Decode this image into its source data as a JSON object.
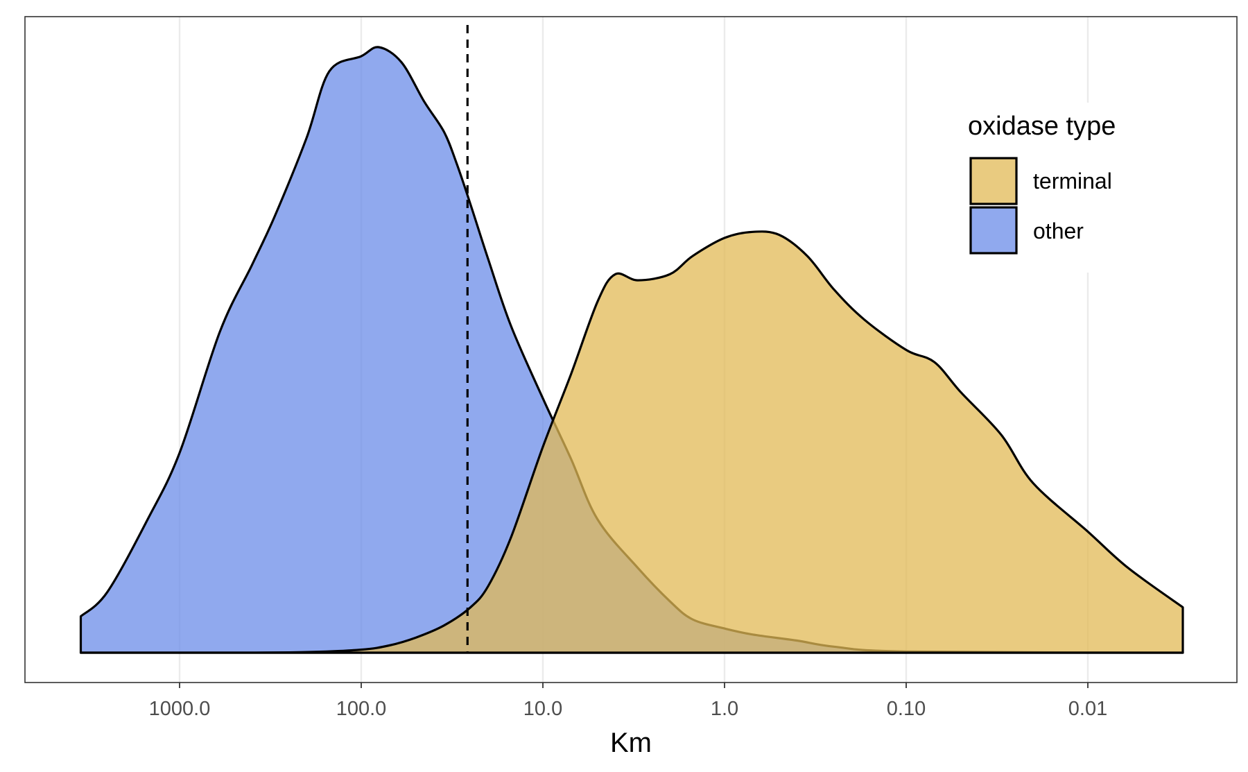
{
  "chart_data": {
    "type": "area",
    "subtype": "density",
    "xlabel": "Km",
    "x_scale": "log10",
    "x_reversed": true,
    "x_ticks": [
      1000,
      100,
      10,
      1,
      0.1,
      0.01
    ],
    "x_tick_labels": [
      "1000.0",
      "100.0",
      "10.0",
      "1.0",
      "0.10",
      "0.01"
    ],
    "xlim": [
      3500,
      0.003
    ],
    "ylim": [
      0,
      1.03
    ],
    "y_axis_shown": false,
    "grid": "vertical major lines",
    "reference_line": {
      "x": 26,
      "style": "dashed"
    },
    "legend": {
      "title": "oxidase type",
      "position": "inside-top-right",
      "entries": [
        {
          "label": "terminal",
          "series": "terminal"
        },
        {
          "label": "other",
          "series": "other"
        }
      ]
    },
    "series": [
      {
        "name": "other",
        "color": "#6b8ce8",
        "opacity": 0.75,
        "points": [
          [
            3500,
            0.06
          ],
          [
            2500,
            0.1
          ],
          [
            1500,
            0.22
          ],
          [
            1000,
            0.33
          ],
          [
            600,
            0.53
          ],
          [
            400,
            0.64
          ],
          [
            300,
            0.72
          ],
          [
            200,
            0.85
          ],
          [
            150,
            0.96
          ],
          [
            100,
            0.985
          ],
          [
            80,
            1.0
          ],
          [
            60,
            0.975
          ],
          [
            45,
            0.91
          ],
          [
            35,
            0.86
          ],
          [
            30,
            0.81
          ],
          [
            25,
            0.74
          ],
          [
            20,
            0.65
          ],
          [
            15,
            0.54
          ],
          [
            10,
            0.42
          ],
          [
            7,
            0.32
          ],
          [
            5,
            0.22
          ],
          [
            3,
            0.14
          ],
          [
            2,
            0.085
          ],
          [
            1.5,
            0.055
          ],
          [
            1,
            0.04
          ],
          [
            0.7,
            0.03
          ],
          [
            0.4,
            0.02
          ],
          [
            0.25,
            0.01
          ],
          [
            0.1,
            0.002
          ],
          [
            0.003,
            0.0
          ]
        ]
      },
      {
        "name": "terminal",
        "color": "#e2b955",
        "opacity": 0.75,
        "points": [
          [
            3500,
            0.0
          ],
          [
            1000,
            0.0
          ],
          [
            500,
            0.0
          ],
          [
            200,
            0.001
          ],
          [
            100,
            0.005
          ],
          [
            70,
            0.012
          ],
          [
            50,
            0.025
          ],
          [
            35,
            0.045
          ],
          [
            25,
            0.075
          ],
          [
            20,
            0.11
          ],
          [
            15,
            0.19
          ],
          [
            10,
            0.34
          ],
          [
            7,
            0.46
          ],
          [
            5,
            0.58
          ],
          [
            4,
            0.625
          ],
          [
            3,
            0.615
          ],
          [
            2,
            0.625
          ],
          [
            1.5,
            0.655
          ],
          [
            1,
            0.685
          ],
          [
            0.7,
            0.695
          ],
          [
            0.5,
            0.69
          ],
          [
            0.35,
            0.655
          ],
          [
            0.25,
            0.6
          ],
          [
            0.17,
            0.55
          ],
          [
            0.1,
            0.5
          ],
          [
            0.07,
            0.48
          ],
          [
            0.05,
            0.43
          ],
          [
            0.03,
            0.36
          ],
          [
            0.02,
            0.28
          ],
          [
            0.01,
            0.2
          ],
          [
            0.006,
            0.14
          ],
          [
            0.003,
            0.075
          ]
        ]
      }
    ]
  }
}
